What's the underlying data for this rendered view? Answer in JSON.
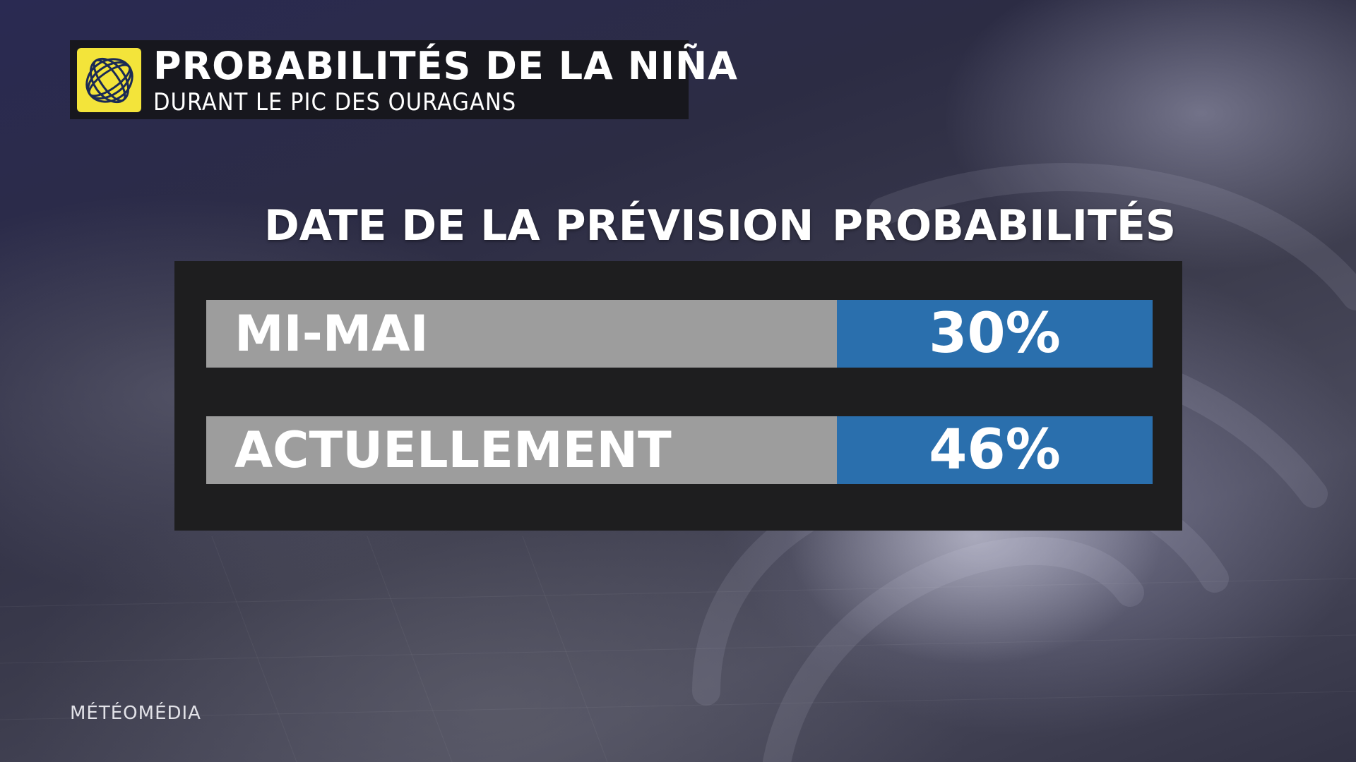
{
  "header": {
    "title": "PROBABILITÉS DE LA NIÑA",
    "subtitle": "DURANT LE PIC DES OURAGANS",
    "logo_color": "#f3e43a",
    "logo_icon": "globe-icon"
  },
  "table": {
    "columns": [
      "DATE DE LA PRÉVISION",
      "PROBABILITÉS"
    ],
    "rows": [
      {
        "label": "MI-MAI",
        "value": "30%"
      },
      {
        "label": "ACTUELLEMENT",
        "value": "46%"
      }
    ],
    "label_color": "#9d9d9d",
    "value_color": "#2a6fad",
    "panel_color": "#1e1e1f"
  },
  "footer": {
    "brand": "MÉTÉOMÉDIA"
  }
}
